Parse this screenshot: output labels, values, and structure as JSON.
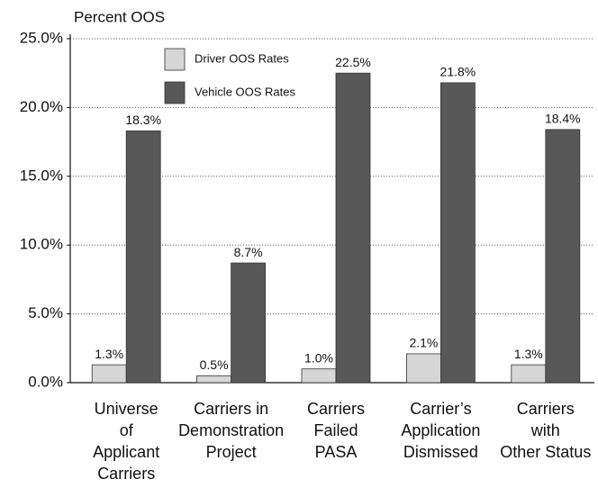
{
  "chart_data": {
    "type": "bar",
    "y_axis_label": "Percent OOS",
    "categories": [
      [
        "Universe",
        "of",
        "Applicant",
        "Carriers"
      ],
      [
        "Carriers in",
        "Demonstration",
        "Project"
      ],
      [
        "Carriers",
        "Failed",
        "PASA"
      ],
      [
        "Carrier’s",
        "Application",
        "Dismissed"
      ],
      [
        "Carriers",
        "with",
        "Other Status"
      ]
    ],
    "series": [
      {
        "name": "Driver OOS Rates",
        "color": "#d6d6d6",
        "values": [
          1.3,
          0.5,
          1.0,
          2.1,
          1.3
        ],
        "value_labels": [
          "1.3%",
          "0.5%",
          "1.0%",
          "2.1%",
          "1.3%"
        ]
      },
      {
        "name": "Vehicle OOS Rates",
        "color": "#585858",
        "values": [
          18.3,
          8.7,
          22.5,
          21.8,
          18.4
        ],
        "value_labels": [
          "18.3%",
          "8.7%",
          "22.5%",
          "21.8%",
          "18.4%"
        ]
      }
    ],
    "ylim": [
      0,
      25
    ],
    "yticks": [
      {
        "value": 0,
        "label": "0.0%"
      },
      {
        "value": 5,
        "label": "5.0%"
      },
      {
        "value": 10,
        "label": "10.0%"
      },
      {
        "value": 15,
        "label": "15.0%"
      },
      {
        "value": 20,
        "label": "20.0%"
      },
      {
        "value": 25,
        "label": "25.0%"
      }
    ],
    "grid": true
  }
}
